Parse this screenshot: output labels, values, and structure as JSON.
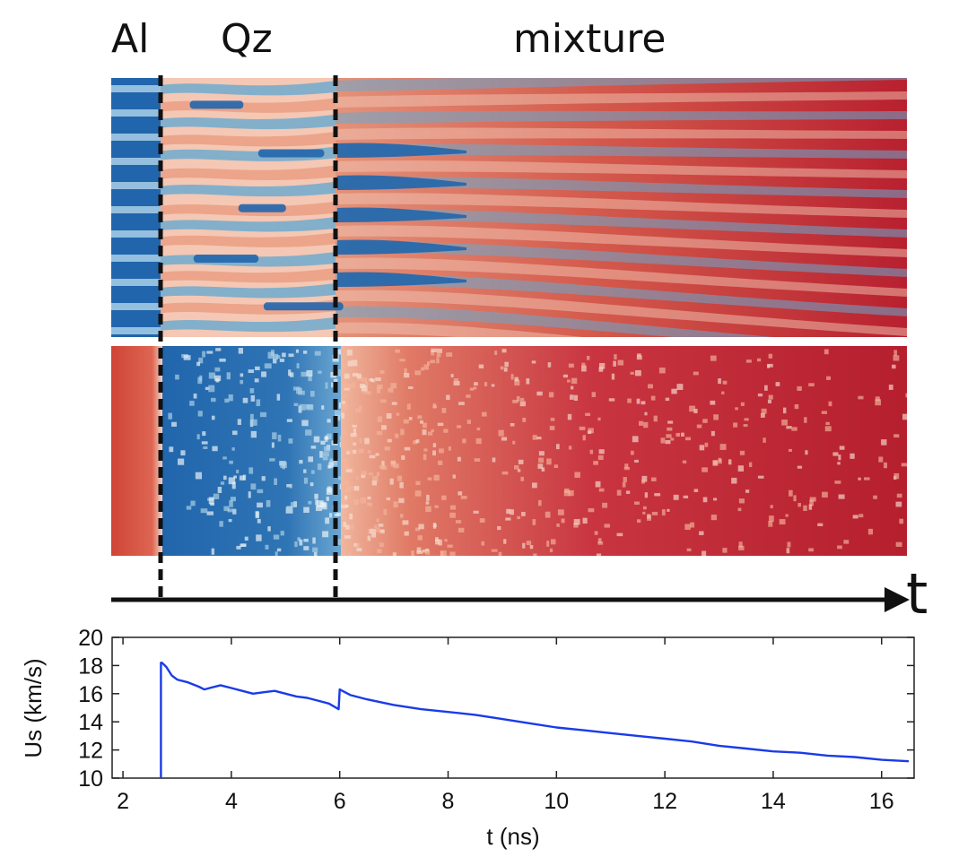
{
  "regions": {
    "al": "Al",
    "qz": "Qz",
    "mixture": "mixture"
  },
  "time_arrow_label": "t",
  "colors": {
    "hot_red": "#b2182b",
    "warm": "#ef8a62",
    "pale": "#f7e5dc",
    "cool": "#67a9cf",
    "cold_blue": "#2166ac",
    "line": "#1a3be8"
  },
  "chart_data": {
    "type": "line",
    "title": "",
    "xlabel": "t (ns)",
    "ylabel": "Us (km/s)",
    "xlim": [
      1.8,
      16.6
    ],
    "ylim": [
      10,
      20
    ],
    "xticks": [
      2,
      4,
      6,
      8,
      10,
      12,
      14,
      16
    ],
    "yticks": [
      10,
      12,
      14,
      16,
      18,
      20
    ],
    "boundaries_ns": [
      2.7,
      6.0
    ],
    "series": [
      {
        "name": "Us",
        "x": [
          2.7,
          2.7,
          2.72,
          2.8,
          2.9,
          3.0,
          3.2,
          3.4,
          3.5,
          3.6,
          3.8,
          4.0,
          4.2,
          4.4,
          4.6,
          4.8,
          5.0,
          5.2,
          5.4,
          5.6,
          5.8,
          5.98,
          6.0,
          6.05,
          6.2,
          6.5,
          7.0,
          7.5,
          8.0,
          8.5,
          9.0,
          9.5,
          10.0,
          10.5,
          11.0,
          11.5,
          12.0,
          12.5,
          13.0,
          13.5,
          14.0,
          14.5,
          15.0,
          15.5,
          16.0,
          16.5
        ],
        "y": [
          10.0,
          18.2,
          18.2,
          17.9,
          17.3,
          17.0,
          16.8,
          16.5,
          16.3,
          16.4,
          16.6,
          16.4,
          16.2,
          16.0,
          16.1,
          16.2,
          16.0,
          15.8,
          15.7,
          15.5,
          15.3,
          14.9,
          16.3,
          16.2,
          15.9,
          15.6,
          15.2,
          14.9,
          14.7,
          14.5,
          14.2,
          13.9,
          13.6,
          13.4,
          13.2,
          13.0,
          12.8,
          12.6,
          12.3,
          12.1,
          11.9,
          11.8,
          11.6,
          11.5,
          11.3,
          11.2
        ]
      }
    ]
  }
}
